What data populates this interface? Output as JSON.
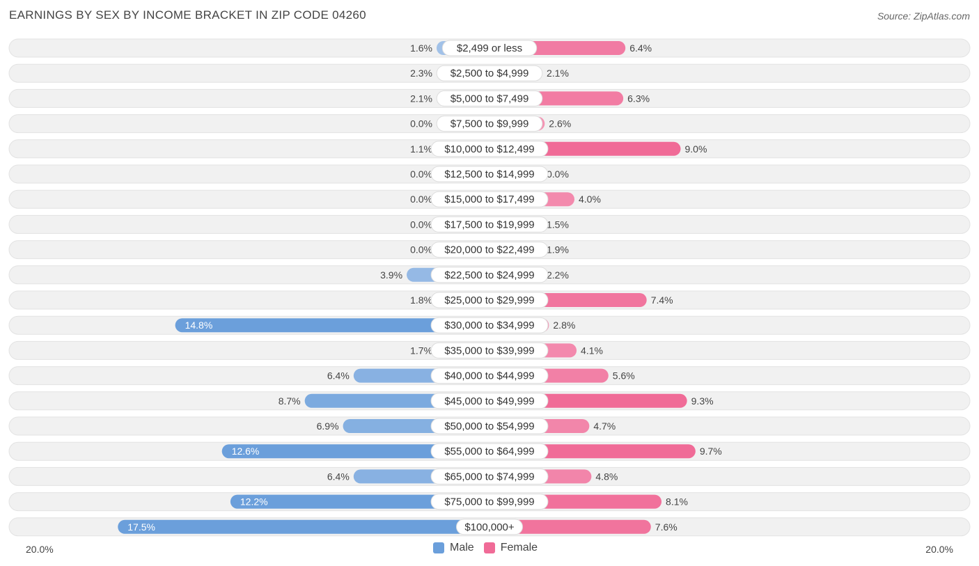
{
  "title": "EARNINGS BY SEX BY INCOME BRACKET IN ZIP CODE 04260",
  "source": "Source: ZipAtlas.com",
  "axis": {
    "left_label": "20.0%",
    "right_label": "20.0%"
  },
  "legend": {
    "male": "Male",
    "female": "Female"
  },
  "colors": {
    "male_strong": "#6b9fdb",
    "male_light": "#a9c6ea",
    "female_strong": "#f06b97",
    "female_light": "#f5a3bf",
    "row_bg": "#f1f1f1"
  },
  "chart_data": {
    "type": "bar",
    "orientation": "diverging-horizontal",
    "title": "EARNINGS BY SEX BY INCOME BRACKET IN ZIP CODE 04260",
    "xlim": [
      -20,
      20
    ],
    "categories": [
      "$2,499 or less",
      "$2,500 to $4,999",
      "$5,000 to $7,499",
      "$7,500 to $9,999",
      "$10,000 to $12,499",
      "$12,500 to $14,999",
      "$15,000 to $17,499",
      "$17,500 to $19,999",
      "$20,000 to $22,499",
      "$22,500 to $24,999",
      "$25,000 to $29,999",
      "$30,000 to $34,999",
      "$35,000 to $39,999",
      "$40,000 to $44,999",
      "$45,000 to $49,999",
      "$50,000 to $54,999",
      "$55,000 to $64,999",
      "$65,000 to $74,999",
      "$75,000 to $99,999",
      "$100,000+"
    ],
    "series": [
      {
        "name": "Male",
        "values": [
          1.6,
          2.3,
          2.1,
          0.0,
          1.1,
          0.0,
          0.0,
          0.0,
          0.0,
          3.9,
          1.8,
          14.8,
          1.7,
          6.4,
          8.7,
          6.9,
          12.6,
          6.4,
          12.2,
          17.5
        ],
        "labels": [
          "1.6%",
          "2.3%",
          "2.1%",
          "0.0%",
          "1.1%",
          "0.0%",
          "0.0%",
          "0.0%",
          "0.0%",
          "3.9%",
          "1.8%",
          "14.8%",
          "1.7%",
          "6.4%",
          "8.7%",
          "6.9%",
          "12.6%",
          "6.4%",
          "12.2%",
          "17.5%"
        ]
      },
      {
        "name": "Female",
        "values": [
          6.4,
          2.1,
          6.3,
          2.6,
          9.0,
          0.0,
          4.0,
          1.5,
          1.9,
          2.2,
          7.4,
          2.8,
          4.1,
          5.6,
          9.3,
          4.7,
          9.7,
          4.8,
          8.1,
          7.6
        ],
        "labels": [
          "6.4%",
          "2.1%",
          "6.3%",
          "2.6%",
          "9.0%",
          "0.0%",
          "4.0%",
          "1.5%",
          "1.9%",
          "2.2%",
          "7.4%",
          "2.8%",
          "4.1%",
          "5.6%",
          "9.3%",
          "4.7%",
          "9.7%",
          "4.8%",
          "8.1%",
          "7.6%"
        ]
      }
    ]
  }
}
